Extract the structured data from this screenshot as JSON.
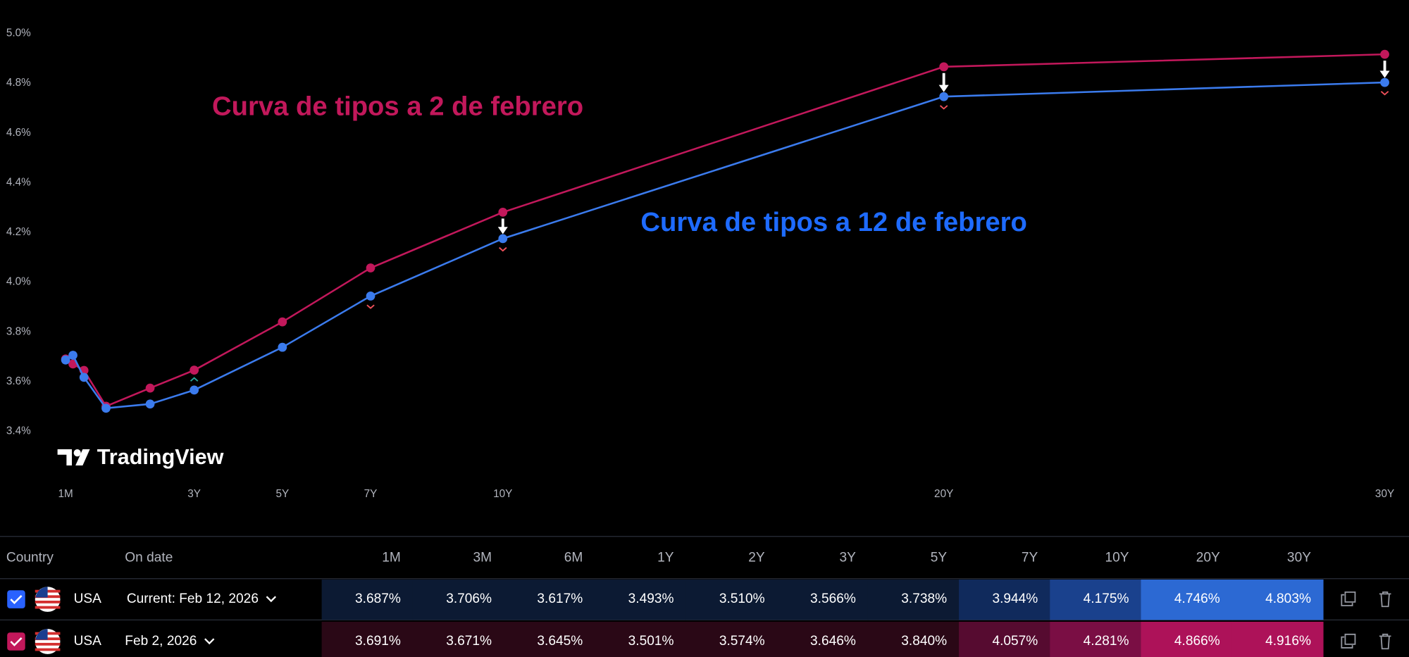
{
  "chart_data": {
    "type": "line",
    "x": [
      0.0833,
      0.25,
      0.5,
      1,
      2,
      3,
      5,
      7,
      10,
      20,
      30
    ],
    "xlim": [
      0.0833,
      30
    ],
    "xticks": [
      {
        "value": 0.0833,
        "label": "1M"
      },
      {
        "value": 3,
        "label": "3Y"
      },
      {
        "value": 5,
        "label": "5Y"
      },
      {
        "value": 7,
        "label": "7Y"
      },
      {
        "value": 10,
        "label": "10Y"
      },
      {
        "value": 20,
        "label": "20Y"
      },
      {
        "value": 30,
        "label": "30Y"
      }
    ],
    "ylim": [
      3.4,
      5.0
    ],
    "yticks": [
      {
        "value": 3.4,
        "label": "3.4%"
      },
      {
        "value": 3.6,
        "label": "3.6%"
      },
      {
        "value": 3.8,
        "label": "3.8%"
      },
      {
        "value": 4.0,
        "label": "4.0%"
      },
      {
        "value": 4.2,
        "label": "4.2%"
      },
      {
        "value": 4.4,
        "label": "4.4%"
      },
      {
        "value": 4.6,
        "label": "4.6%"
      },
      {
        "value": 4.8,
        "label": "4.8%"
      },
      {
        "value": 5.0,
        "label": "5.0%"
      }
    ],
    "series": [
      {
        "name": "Current: Feb 12, 2026",
        "annotation": "Curva de tipos a 12 de febrero",
        "color": "#3b7bed",
        "values": [
          3.687,
          3.706,
          3.617,
          3.493,
          3.51,
          3.566,
          3.738,
          3.944,
          4.175,
          4.746,
          4.803
        ],
        "value_labels": [
          "3.687%",
          "3.706%",
          "3.617%",
          "3.493%",
          "3.510%",
          "3.566%",
          "3.738%",
          "3.944%",
          "4.175%",
          "4.746%",
          "4.803%"
        ]
      },
      {
        "name": "Feb 2, 2026",
        "annotation": "Curva de tipos a 2 de febrero",
        "color": "#c2185b",
        "values": [
          3.691,
          3.671,
          3.645,
          3.501,
          3.574,
          3.646,
          3.84,
          4.057,
          4.281,
          4.866,
          4.916
        ],
        "value_labels": [
          "3.691%",
          "3.671%",
          "3.645%",
          "3.501%",
          "3.574%",
          "3.646%",
          "3.840%",
          "4.057%",
          "4.281%",
          "4.866%",
          "4.916%"
        ]
      }
    ]
  },
  "watermark": "TradingView",
  "table": {
    "headers": [
      "Country",
      "On date"
    ],
    "maturities": [
      "1M",
      "3M",
      "6M",
      "1Y",
      "2Y",
      "3Y",
      "5Y",
      "7Y",
      "10Y",
      "20Y",
      "30Y"
    ],
    "rows": [
      {
        "country": "USA",
        "check_color": "#2962ff",
        "cell_colors": [
          "#0c1a33",
          "#0c1a33",
          "#0c1a33",
          "#0c1a33",
          "#0c1a33",
          "#0c1a33",
          "#0c1a33",
          "#102a5c",
          "#1a418d",
          "#2c69d3",
          "#2c69d3"
        ]
      },
      {
        "country": "USA",
        "check_color": "#c2185b",
        "cell_colors": [
          "#2a0816",
          "#2a0816",
          "#2a0816",
          "#2a0816",
          "#2a0816",
          "#2a0816",
          "#2a0816",
          "#560b30",
          "#7a0e44",
          "#ad1259",
          "#ad1259"
        ]
      }
    ]
  }
}
